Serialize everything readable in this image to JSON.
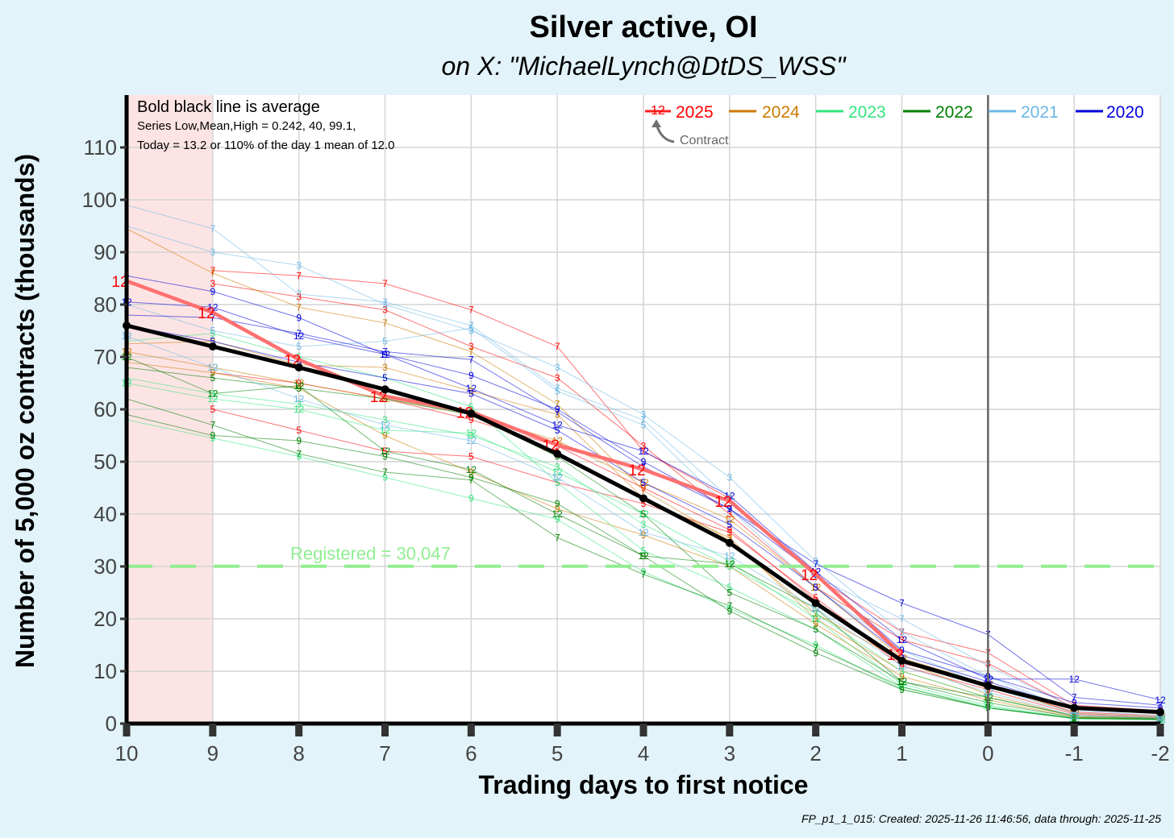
{
  "title": "Silver active, OI",
  "subtitle": "on X:   \"MichaelLynch@DtDS_WSS\"",
  "notes": {
    "line1": "Bold black line is average",
    "line2": "Series Low,Mean,High = 0.242,   40, 99.1,",
    "line3": "Today = 13.2 or 110% of the day 1 mean of 12.0"
  },
  "legend": {
    "contract_marker": "12",
    "contract_note": "Contract",
    "entries": [
      {
        "label": "2025",
        "color": "#ff0000"
      },
      {
        "label": "2024",
        "color": "#cc7a00"
      },
      {
        "label": "2023",
        "color": "#33e680"
      },
      {
        "label": "2022",
        "color": "#008000"
      },
      {
        "label": "2021",
        "color": "#6cb8e6"
      },
      {
        "label": "2020",
        "color": "#0000dd"
      }
    ]
  },
  "registered_label": "Registered = 30,047",
  "footer": "FP_p1_1_015: Created: 2025-11-26 11:46:56, data through: 2025-11-25",
  "colors": {
    "background": "#e2f3f9",
    "panel": "#ffffff",
    "shade": "#fde4e4",
    "average": "#000000",
    "current": "#ff7070",
    "registered": "#90ee90",
    "today_line": "#666666"
  },
  "chart_data": {
    "type": "line",
    "title": "Silver active, OI",
    "xlabel": "Trading days to first notice",
    "ylabel": "Number of 5,000 oz contracts (thousands)",
    "x_ticks": [
      10,
      9,
      8,
      7,
      6,
      5,
      4,
      3,
      2,
      1,
      0,
      -1,
      -2
    ],
    "xlim": [
      10,
      -2
    ],
    "y_ticks": [
      0,
      10,
      20,
      30,
      40,
      50,
      60,
      70,
      80,
      90,
      100,
      110
    ],
    "ylim": [
      0,
      120
    ],
    "shaded_x_range": [
      10,
      9
    ],
    "today_x": 0,
    "registered_y": 30.047,
    "average": {
      "x": [
        10,
        9,
        8,
        7,
        6,
        5,
        4,
        3,
        2,
        1,
        0,
        -1,
        -2
      ],
      "y": [
        76,
        72,
        68,
        63.8,
        59.2,
        51.5,
        43,
        34.5,
        23,
        12,
        7.2,
        3,
        2.2
      ]
    },
    "current": {
      "name": "2025",
      "contract": "12",
      "x": [
        10,
        9,
        8,
        7,
        6,
        5,
        4,
        3,
        2,
        1
      ],
      "y": [
        84.5,
        78.5,
        69.5,
        62.5,
        59.5,
        53.2,
        48.5,
        42.5,
        28.5,
        13.2
      ]
    },
    "series": [
      {
        "year": "2025",
        "contract": "7",
        "x": [
          9,
          8,
          7,
          6,
          5,
          4,
          3,
          2,
          1,
          0,
          -1,
          -2
        ],
        "y": [
          86.5,
          85.5,
          84,
          79,
          72,
          52,
          43,
          28,
          17.5,
          13.5,
          3.5,
          2.5
        ]
      },
      {
        "year": "2025",
        "contract": "3",
        "x": [
          9,
          8,
          7,
          6,
          5,
          4,
          3,
          2,
          1,
          0,
          -1,
          -2
        ],
        "y": [
          84,
          81.5,
          79,
          72,
          66,
          53,
          40,
          26,
          16,
          11.5,
          3,
          2
        ]
      },
      {
        "year": "2025",
        "contract": "5",
        "x": [
          9,
          8,
          7,
          6,
          5,
          4,
          3,
          2,
          1,
          0,
          -1,
          -2
        ],
        "y": [
          60,
          56,
          52,
          51,
          46,
          42,
          36.5,
          24,
          11.5,
          7.5,
          2.2,
          1.5
        ]
      },
      {
        "year": "2025",
        "contract": "9",
        "x": [
          9,
          8,
          7,
          6,
          5,
          4,
          3,
          2,
          1,
          0,
          -1,
          -2
        ],
        "y": [
          67,
          65,
          62,
          58,
          53,
          45,
          37,
          23.5,
          11,
          6.5,
          1.8,
          1.2
        ]
      },
      {
        "year": "2024",
        "contract": "7",
        "x": [
          10,
          9,
          8,
          7,
          6,
          5,
          4,
          3,
          2,
          1,
          0,
          -1,
          -2
        ],
        "y": [
          94.5,
          86,
          79.5,
          76.5,
          71,
          61,
          44.5,
          35,
          21,
          12,
          5.5,
          1.5,
          1.1
        ]
      },
      {
        "year": "2024",
        "contract": "3",
        "x": [
          10,
          9,
          8,
          7,
          6,
          5,
          4,
          3,
          2,
          1,
          0,
          -1,
          -2
        ],
        "y": [
          72.5,
          73,
          68.5,
          68,
          63.5,
          59,
          43,
          35.5,
          20,
          10,
          5,
          1.4,
          1
        ]
      },
      {
        "year": "2024",
        "contract": "9",
        "x": [
          10,
          9,
          8,
          7,
          6,
          5,
          4,
          3,
          2,
          1,
          0,
          -1,
          -2
        ],
        "y": [
          69,
          67,
          64,
          55,
          48,
          41,
          36,
          30,
          19,
          9,
          4.5,
          1.2,
          0.9
        ]
      },
      {
        "year": "2024",
        "contract": "12",
        "x": [
          10,
          9,
          8,
          7,
          6,
          5,
          4,
          3,
          2,
          1,
          0,
          -1,
          -2
        ],
        "y": [
          71,
          68,
          65,
          62,
          59,
          54,
          46,
          39,
          26,
          12.5,
          7.5,
          2,
          1.3
        ]
      },
      {
        "year": "2023",
        "contract": "12",
        "x": [
          10,
          9,
          8,
          7,
          6,
          5,
          4,
          3,
          2,
          1,
          0,
          -1,
          -2
        ],
        "y": [
          65,
          62,
          60,
          56,
          55.5,
          48,
          40,
          31,
          20,
          7.5,
          3.5,
          1,
          0.8
        ]
      },
      {
        "year": "2023",
        "contract": "9",
        "x": [
          10,
          9,
          8,
          7,
          6,
          5,
          4,
          3,
          2,
          1,
          0,
          -1,
          -2
        ],
        "y": [
          58,
          54.5,
          51,
          47,
          43,
          39,
          29,
          22,
          15,
          6.5,
          3,
          0.9,
          0.7
        ]
      },
      {
        "year": "2023",
        "contract": "5",
        "x": [
          10,
          9,
          8,
          7,
          6,
          5,
          4,
          3,
          2,
          1,
          0,
          -1,
          -2
        ],
        "y": [
          73,
          74.5,
          70,
          66,
          60.5,
          46,
          33,
          26,
          18,
          7,
          3.2,
          1,
          0.8
        ]
      },
      {
        "year": "2023",
        "contract": "3",
        "x": [
          10,
          9,
          8,
          7,
          6,
          5,
          4,
          3,
          2,
          1,
          0,
          -1,
          -2
        ],
        "y": [
          66,
          63,
          61,
          58,
          55,
          49,
          38,
          30,
          21,
          10,
          5,
          1.5,
          1
        ]
      },
      {
        "year": "2022",
        "contract": "12",
        "x": [
          10,
          9,
          8,
          7,
          6,
          5,
          4,
          3,
          2,
          1,
          0,
          -1,
          -2
        ],
        "y": [
          70,
          63,
          64.5,
          52,
          48.5,
          40,
          32,
          30.5,
          22,
          8,
          5,
          1.5,
          1
        ]
      },
      {
        "year": "2022",
        "contract": "7",
        "x": [
          10,
          9,
          8,
          7,
          6,
          5,
          4,
          3,
          2,
          1,
          0,
          -1,
          -2
        ],
        "y": [
          62,
          57,
          51.5,
          48,
          46.5,
          35.5,
          28.5,
          22.5,
          14.5,
          7,
          3,
          1,
          0.8
        ]
      },
      {
        "year": "2022",
        "contract": "9",
        "x": [
          10,
          9,
          8,
          7,
          6,
          5,
          4,
          3,
          2,
          1,
          0,
          -1,
          -2
        ],
        "y": [
          59,
          55,
          54,
          51,
          47,
          42,
          32,
          21.5,
          13.5,
          6.5,
          3,
          1,
          0.8
        ]
      },
      {
        "year": "2022",
        "contract": "5",
        "x": [
          10,
          9,
          8,
          7,
          6,
          5,
          4,
          3,
          2,
          1,
          0,
          -1,
          -2
        ],
        "y": [
          68,
          66,
          64,
          62,
          59,
          51,
          40,
          25,
          18,
          8,
          4,
          1.2,
          0.9
        ]
      },
      {
        "year": "2021",
        "contract": "7",
        "x": [
          10,
          9,
          8,
          7,
          6,
          5,
          4,
          3,
          2,
          1,
          0,
          -1,
          -2
        ],
        "y": [
          99,
          94.5,
          82,
          80.5,
          76,
          64,
          58,
          43,
          28,
          20,
          11,
          3,
          2
        ]
      },
      {
        "year": "2021",
        "contract": "3",
        "x": [
          10,
          9,
          8,
          7,
          6,
          5,
          4,
          3,
          2,
          1,
          0,
          -1,
          -2
        ],
        "y": [
          95,
          90,
          87.5,
          80,
          75,
          68,
          59,
          47,
          31,
          17.5,
          9,
          2.5,
          1.5
        ]
      },
      {
        "year": "2021",
        "contract": "5",
        "x": [
          10,
          9,
          8,
          7,
          6,
          5,
          4,
          3,
          2,
          1,
          0,
          -1,
          -2
        ],
        "y": [
          80,
          75,
          72,
          73,
          75.5,
          63.5,
          57,
          41,
          26,
          14,
          7,
          2,
          1.2
        ]
      },
      {
        "year": "2021",
        "contract": "12",
        "x": [
          10,
          9,
          8,
          7,
          6,
          5,
          4,
          3,
          2,
          1,
          0,
          -1,
          -2
        ],
        "y": [
          74,
          68,
          62,
          57,
          54,
          47,
          36.5,
          32,
          22,
          11,
          6,
          1.5,
          1
        ]
      },
      {
        "year": "2020",
        "contract": "12",
        "x": [
          10,
          9,
          8,
          7,
          6,
          5,
          4,
          3,
          2,
          1,
          0,
          -1,
          -2
        ],
        "y": [
          80.5,
          79.5,
          74,
          70.5,
          64,
          57,
          52,
          43.5,
          29,
          16,
          8.5,
          8.5,
          4.5
        ]
      },
      {
        "year": "2020",
        "contract": "9",
        "x": [
          10,
          9,
          8,
          7,
          6,
          5,
          4,
          3,
          2,
          1,
          0,
          -1,
          -2
        ],
        "y": [
          85.5,
          82.5,
          77.5,
          70.5,
          66.5,
          60,
          50,
          41,
          28.5,
          14,
          9,
          4,
          3
        ]
      },
      {
        "year": "2020",
        "contract": "7",
        "x": [
          10,
          9,
          8,
          7,
          6,
          5,
          4,
          3,
          2,
          1,
          0,
          -1,
          -2
        ],
        "y": [
          78,
          77.5,
          74.5,
          71,
          69.5,
          59.5,
          49,
          41,
          30.5,
          23,
          17,
          5,
          3.5
        ]
      },
      {
        "year": "2020",
        "contract": "5",
        "x": [
          10,
          9,
          8,
          7,
          6,
          5,
          4,
          3,
          2,
          1,
          0,
          -1,
          -2
        ],
        "y": [
          76,
          73,
          69,
          66,
          63,
          56,
          46,
          38,
          26,
          13,
          8,
          3,
          2
        ]
      }
    ]
  }
}
